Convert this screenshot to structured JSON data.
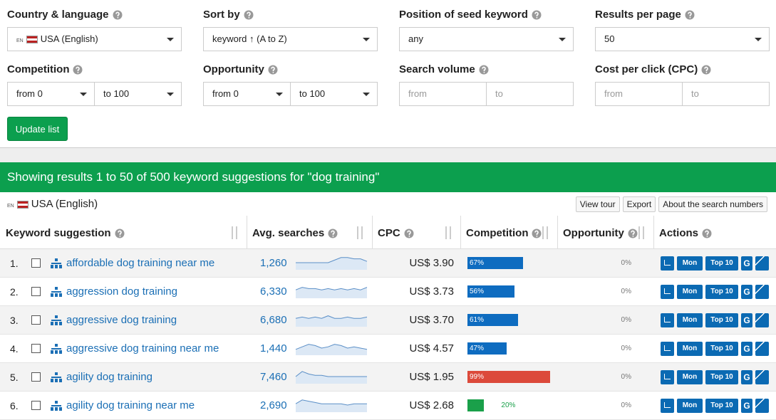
{
  "filters": [
    {
      "label": "Country & language",
      "value": "USA (English)",
      "code": "EN"
    },
    {
      "label": "Sort by",
      "value": "keyword ↑ (A to Z)"
    },
    {
      "label": "Position of seed keyword",
      "value": "any"
    },
    {
      "label": "Results per page",
      "value": "50"
    }
  ],
  "ranges": [
    {
      "label": "Competition",
      "from": "from 0",
      "to": "to 100",
      "select": true
    },
    {
      "label": "Opportunity",
      "from": "from 0",
      "to": "to 100",
      "select": true
    },
    {
      "label": "Search volume",
      "from": "from",
      "to": "to",
      "select": false
    },
    {
      "label": "Cost per click (CPC)",
      "from": "from",
      "to": "to",
      "select": false
    }
  ],
  "update_button": "Update list",
  "results_header": "Showing results 1 to 50 of 500 keyword suggestions for \"dog training\"",
  "locale": {
    "code": "EN",
    "name": "USA (English)"
  },
  "toolbar": [
    "View tour",
    "Export",
    "About the search numbers"
  ],
  "columns": [
    "Keyword suggestion",
    "Avg. searches",
    "CPC",
    "Competition",
    "Opportunity",
    "Actions"
  ],
  "actions": [
    "Mon",
    "Top 10",
    "G"
  ],
  "rows": [
    {
      "rank": "1.",
      "keyword": "affordable dog training near me",
      "searches": "1,260",
      "trend": [
        5,
        5,
        5,
        5,
        5,
        5,
        7,
        9,
        9,
        8,
        8,
        6
      ],
      "cpc": "US$ 3.90",
      "competition": {
        "value": 67,
        "label": "67%",
        "color": "#0e6cc0"
      },
      "opportunity": "0%"
    },
    {
      "rank": "2.",
      "keyword": "aggression dog training",
      "searches": "6,330",
      "trend": [
        6,
        8,
        7,
        7,
        6,
        7,
        6,
        7,
        6,
        7,
        6,
        8
      ],
      "cpc": "US$ 3.73",
      "competition": {
        "value": 56,
        "label": "56%",
        "color": "#0e6cc0"
      },
      "opportunity": "0%"
    },
    {
      "rank": "3.",
      "keyword": "aggressive dog training",
      "searches": "6,680",
      "trend": [
        6,
        7,
        6,
        7,
        6,
        8,
        6,
        6,
        7,
        6,
        6,
        7
      ],
      "cpc": "US$ 3.70",
      "competition": {
        "value": 61,
        "label": "61%",
        "color": "#0e6cc0"
      },
      "opportunity": "0%"
    },
    {
      "rank": "4.",
      "keyword": "aggressive dog training near me",
      "searches": "1,440",
      "trend": [
        4,
        6,
        8,
        7,
        5,
        6,
        8,
        7,
        5,
        6,
        5,
        4
      ],
      "cpc": "US$ 4.57",
      "competition": {
        "value": 47,
        "label": "47%",
        "color": "#0e6cc0"
      },
      "opportunity": "0%"
    },
    {
      "rank": "5.",
      "keyword": "agility dog training",
      "searches": "7,460",
      "trend": [
        5,
        9,
        7,
        6,
        6,
        5,
        5,
        5,
        5,
        5,
        5,
        5
      ],
      "cpc": "US$ 1.95",
      "competition": {
        "value": 99,
        "label": "99%",
        "color": "#dc4a3b"
      },
      "opportunity": "0%"
    },
    {
      "rank": "6.",
      "keyword": "agility dog training near me",
      "searches": "2,690",
      "trend": [
        6,
        9,
        8,
        7,
        6,
        6,
        6,
        6,
        5,
        6,
        6,
        6
      ],
      "cpc": "US$ 2.68",
      "competition": {
        "value": 20,
        "label": "20%",
        "color": "#1aa04a"
      },
      "opportunity": "0%"
    }
  ]
}
